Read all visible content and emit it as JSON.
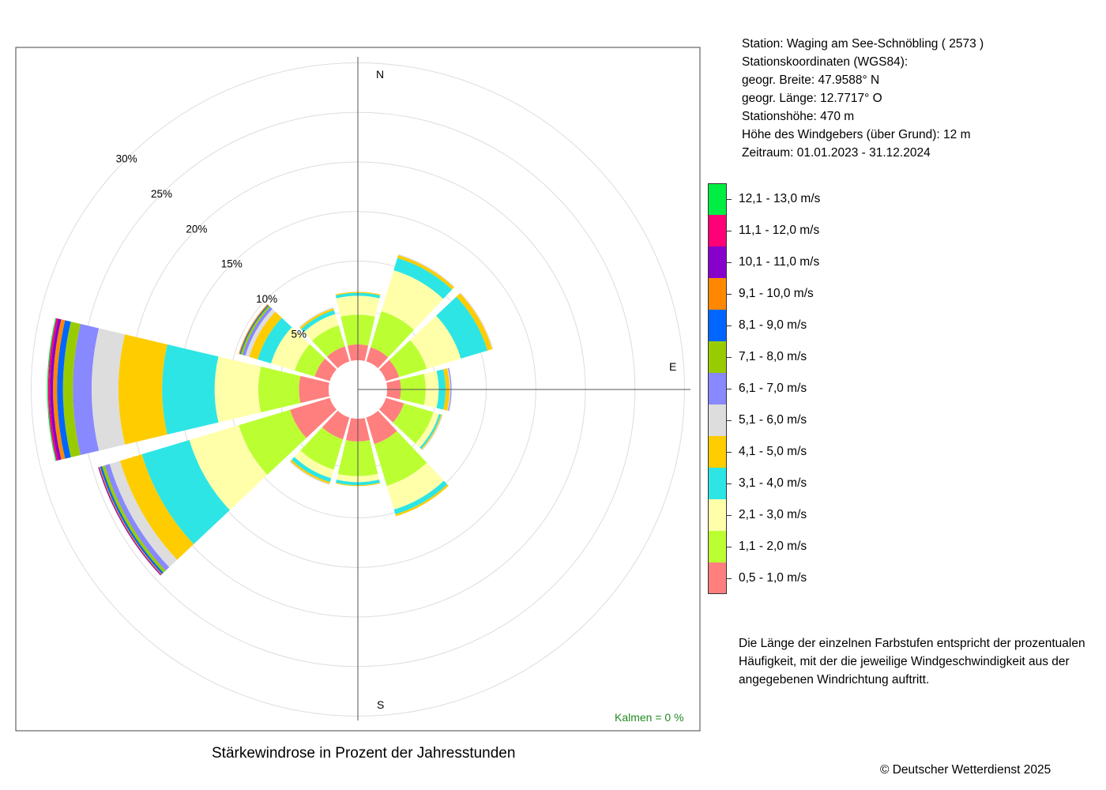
{
  "station": {
    "line1": "Station:  Waging am See-Schnöbling  ( 2573 )",
    "line2": "Stationskoordinaten (WGS84):",
    "line3": "geogr. Breite: 47.9588° N",
    "line4": "geogr. Länge: 12.7717° O",
    "line5": "Stationshöhe: 470 m",
    "line6": "Höhe des Windgebers (über Grund): 12 m",
    "line7": "Zeitraum: 01.01.2023 - 31.12.2024"
  },
  "legend": [
    {
      "label": "12,1 - 13,0 m/s",
      "color": "#00ee44"
    },
    {
      "label": "11,1 - 12,0 m/s",
      "color": "#ff0077"
    },
    {
      "label": "10,1 - 11,0 m/s",
      "color": "#8800cc"
    },
    {
      "label": "9,1 - 10,0 m/s",
      "color": "#ff8800"
    },
    {
      "label": "8,1 - 9,0 m/s",
      "color": "#0066ff"
    },
    {
      "label": "7,1 - 8,0 m/s",
      "color": "#99cc00"
    },
    {
      "label": "6,1 - 7,0 m/s",
      "color": "#8888ff"
    },
    {
      "label": "5,1 - 6,0 m/s",
      "color": "#dddddd"
    },
    {
      "label": "4,1 - 5,0 m/s",
      "color": "#ffcc00"
    },
    {
      "label": "3,1 - 4,0 m/s",
      "color": "#2de5e5"
    },
    {
      "label": "2,1 - 3,0 m/s",
      "color": "#ffffaa"
    },
    {
      "label": "1,1 - 2,0 m/s",
      "color": "#bbff33"
    },
    {
      "label": "0,5 - 1,0 m/s",
      "color": "#ff7f7f"
    }
  ],
  "note": {
    "line1": "Die Länge der einzelnen Farbstufen entspricht der prozentualen",
    "line2": "Häufigkeit, mit der die jeweilige Windgeschwindigkeit aus der",
    "line3": "angegebenen Windrichtung auftritt."
  },
  "caption": "Stärkewindrose in Prozent der Jahresstunden",
  "copyright": "© Deutscher Wetterdienst  2025",
  "chart_data": {
    "type": "wind_rose",
    "title": "Stärkewindrose in Prozent der Jahresstunden",
    "calms_label": "Kalmen  =  0 %",
    "compass": [
      "N",
      "E",
      "S"
    ],
    "radial_ticks": [
      5,
      10,
      15,
      20,
      25,
      30
    ],
    "radial_tick_labels": [
      "5%",
      "10%",
      "15%",
      "20%",
      "25%",
      "30%"
    ],
    "grid": true,
    "directions_deg": [
      0,
      30,
      60,
      90,
      120,
      150,
      180,
      210,
      240,
      270,
      300,
      330
    ],
    "speed_classes": [
      "0,5 - 1,0 m/s",
      "1,1 - 2,0 m/s",
      "2,1 - 3,0 m/s",
      "3,1 - 4,0 m/s",
      "4,1 - 5,0 m/s",
      "5,1 - 6,0 m/s",
      "6,1 - 7,0 m/s",
      "7,1 - 8,0 m/s",
      "8,1 - 9,0 m/s",
      "9,1 - 10,0 m/s",
      "10,1 - 11,0 m/s",
      "11,1 - 12,0 m/s",
      "12,1 - 13,0 m/s"
    ],
    "series": [
      {
        "direction": 0,
        "values": [
          1.6,
          3.0,
          1.9,
          0.3,
          0.1,
          0,
          0,
          0,
          0,
          0,
          0,
          0,
          0
        ]
      },
      {
        "direction": 30,
        "values": [
          1.5,
          3.8,
          4.3,
          1.3,
          0.3,
          0.1,
          0,
          0,
          0,
          0,
          0,
          0,
          0
        ]
      },
      {
        "direction": 60,
        "values": [
          1.4,
          2.9,
          3.6,
          2.8,
          0.5,
          0.1,
          0,
          0,
          0,
          0,
          0,
          0,
          0
        ]
      },
      {
        "direction": 90,
        "values": [
          1.4,
          2.5,
          1.3,
          0.7,
          0.4,
          0.1,
          0.1,
          0,
          0,
          0,
          0,
          0,
          0
        ]
      },
      {
        "direction": 120,
        "values": [
          1.9,
          3.1,
          0.6,
          0.2,
          0.1,
          0.1,
          0,
          0,
          0,
          0,
          0,
          0,
          0
        ]
      },
      {
        "direction": 150,
        "values": [
          2.8,
          4.4,
          2.5,
          0.5,
          0.2,
          0,
          0,
          0,
          0,
          0,
          0,
          0,
          0
        ]
      },
      {
        "direction": 180,
        "values": [
          2.3,
          3.5,
          0.6,
          0.3,
          0.1,
          0,
          0,
          0,
          0,
          0,
          0,
          0,
          0
        ]
      },
      {
        "direction": 210,
        "values": [
          2.3,
          3.2,
          0.9,
          0.4,
          0.2,
          0.1,
          0,
          0,
          0,
          0,
          0,
          0,
          0
        ]
      },
      {
        "direction": 240,
        "values": [
          4.2,
          5.4,
          5.2,
          5.0,
          2.3,
          1.1,
          0.5,
          0.3,
          0.2,
          0.1,
          0.1,
          0,
          0
        ]
      },
      {
        "direction": 270,
        "values": [
          3.0,
          4.1,
          4.4,
          5.3,
          4.4,
          2.7,
          1.9,
          1.0,
          0.6,
          0.4,
          0.3,
          0.2,
          0.1
        ]
      },
      {
        "direction": 300,
        "values": [
          1.6,
          2.1,
          2.5,
          1.4,
          0.9,
          0.4,
          0.3,
          0.2,
          0.1,
          0.1,
          0,
          0,
          0
        ]
      },
      {
        "direction": 330,
        "values": [
          1.6,
          2.2,
          1.2,
          0.4,
          0.2,
          0.1,
          0,
          0,
          0,
          0,
          0,
          0,
          0
        ]
      }
    ]
  }
}
